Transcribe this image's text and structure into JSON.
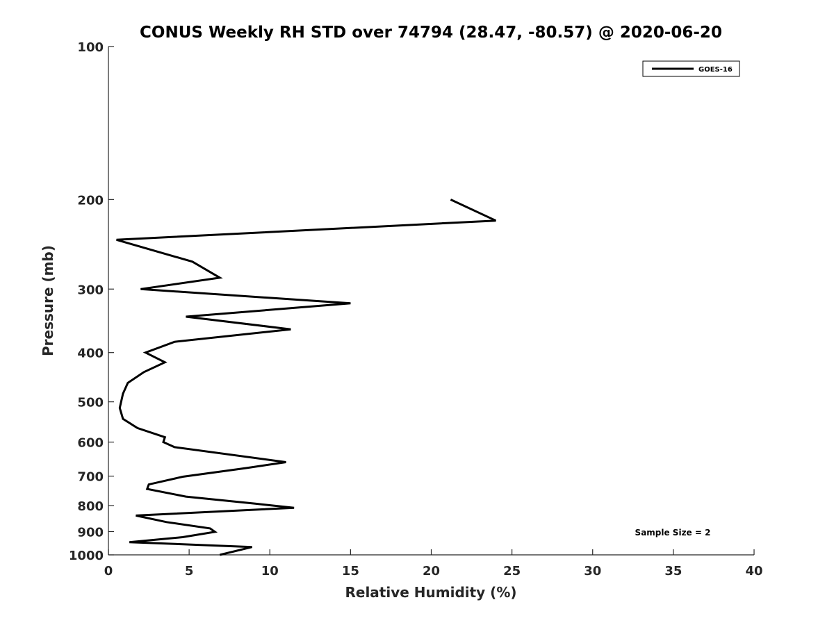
{
  "chart_data": {
    "type": "line",
    "title": "CONUS Weekly RH STD over 74794 (28.47, -80.57) @ 2020-06-20",
    "xlabel": "Relative Humidity (%)",
    "ylabel": "Pressure (mb)",
    "xlim": [
      0,
      40
    ],
    "ylim": [
      100,
      1000
    ],
    "y_scale": "log",
    "y_reversed": true,
    "x_ticks": [
      "0",
      "5",
      "10",
      "15",
      "20",
      "25",
      "30",
      "35",
      "40"
    ],
    "y_ticks": [
      "100",
      "200",
      "300",
      "400",
      "500",
      "600",
      "700",
      "800",
      "900",
      "1000"
    ],
    "grid": false,
    "legend": {
      "position": "top-right",
      "entries": [
        "GOES-16"
      ]
    },
    "annotations": [
      "Sample Size = 2"
    ],
    "series": [
      {
        "name": "GOES-16",
        "color": "#000000",
        "points": [
          {
            "x": 21.2,
            "y": 200
          },
          {
            "x": 24.0,
            "y": 220
          },
          {
            "x": 0.5,
            "y": 240
          },
          {
            "x": 5.2,
            "y": 265
          },
          {
            "x": 6.9,
            "y": 285
          },
          {
            "x": 2.0,
            "y": 300
          },
          {
            "x": 15.0,
            "y": 320
          },
          {
            "x": 4.8,
            "y": 340
          },
          {
            "x": 11.3,
            "y": 360
          },
          {
            "x": 4.1,
            "y": 381
          },
          {
            "x": 2.3,
            "y": 400
          },
          {
            "x": 3.5,
            "y": 418
          },
          {
            "x": 2.2,
            "y": 437
          },
          {
            "x": 1.2,
            "y": 459
          },
          {
            "x": 0.9,
            "y": 482
          },
          {
            "x": 0.7,
            "y": 514
          },
          {
            "x": 0.9,
            "y": 540
          },
          {
            "x": 1.8,
            "y": 563
          },
          {
            "x": 3.5,
            "y": 587
          },
          {
            "x": 3.4,
            "y": 600
          },
          {
            "x": 4.1,
            "y": 614
          },
          {
            "x": 11.0,
            "y": 657
          },
          {
            "x": 8.5,
            "y": 675
          },
          {
            "x": 4.6,
            "y": 702
          },
          {
            "x": 2.5,
            "y": 727
          },
          {
            "x": 2.4,
            "y": 742
          },
          {
            "x": 4.8,
            "y": 768
          },
          {
            "x": 9.1,
            "y": 793
          },
          {
            "x": 11.5,
            "y": 808
          },
          {
            "x": 1.7,
            "y": 837
          },
          {
            "x": 3.6,
            "y": 862
          },
          {
            "x": 6.3,
            "y": 887
          },
          {
            "x": 6.6,
            "y": 901
          },
          {
            "x": 4.6,
            "y": 923
          },
          {
            "x": 1.3,
            "y": 944
          },
          {
            "x": 8.9,
            "y": 965
          },
          {
            "x": 6.9,
            "y": 1000
          }
        ]
      }
    ]
  }
}
